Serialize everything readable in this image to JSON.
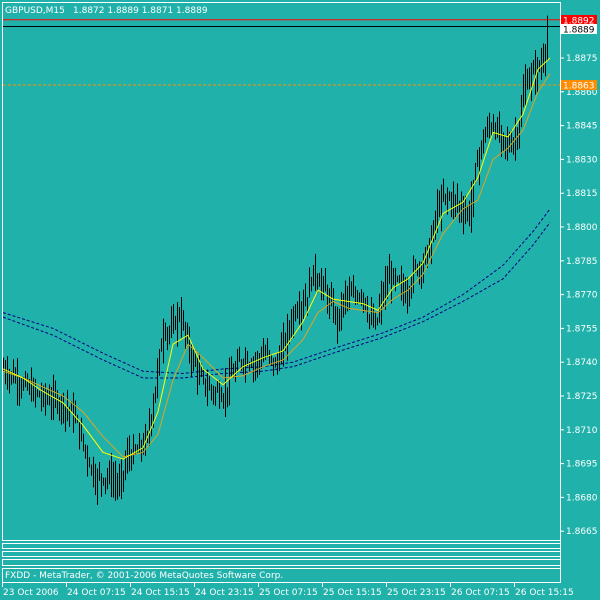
{
  "header": {
    "symbol_timeframe": "GBPUSD,M15",
    "ohlc": "1.8872 1.8889 1.8871 1.8889"
  },
  "footer": {
    "copyright": "FXDD - MetaTrader, © 2001-2006 MetaQuotes Software Corp."
  },
  "price_labels": {
    "red_line": "1.8892",
    "current": "1.8889",
    "orange_line": "1.8863"
  },
  "colors": {
    "background": "#20b2aa",
    "candles": "#000000",
    "ma_fast": "#ffff00",
    "ma_slow": "#daa520",
    "envelope": "#000080",
    "red_line": "#ff0000",
    "orange_line": "#ff8c00",
    "text": "#ffffff"
  },
  "chart_data": {
    "type": "candlestick",
    "title": "GBPUSD,M15",
    "y_ticks": [
      "1.8875",
      "1.8860",
      "1.8845",
      "1.8830",
      "1.8815",
      "1.8800",
      "1.8785",
      "1.8770",
      "1.8755",
      "1.8740",
      "1.8725",
      "1.8710",
      "1.8695",
      "1.8680",
      "1.8665"
    ],
    "y_tick_values": [
      1.8875,
      1.886,
      1.8845,
      1.883,
      1.8815,
      1.88,
      1.8785,
      1.877,
      1.8755,
      1.874,
      1.8725,
      1.871,
      1.8695,
      1.868,
      1.8665
    ],
    "ylim": [
      1.8655,
      1.8905
    ],
    "x_ticks": [
      "23 Oct 2006",
      "24 Oct 07:15",
      "24 Oct 15:15",
      "24 Oct 23:15",
      "25 Oct 07:15",
      "25 Oct 15:15",
      "25 Oct 23:15",
      "26 Oct 07:15",
      "26 Oct 15:15"
    ],
    "horizontal_lines": [
      {
        "label": "1.8892",
        "value": 1.8892,
        "color": "red"
      },
      {
        "label": "1.8889",
        "value": 1.8889,
        "color": "black"
      },
      {
        "label": "1.8863",
        "value": 1.8863,
        "color": "orange"
      }
    ],
    "close_path": [
      [
        0,
        1.8737
      ],
      [
        12,
        1.8733
      ],
      [
        25,
        1.8728
      ],
      [
        40,
        1.8724
      ],
      [
        55,
        1.8723
      ],
      [
        70,
        1.8717
      ],
      [
        80,
        1.8703
      ],
      [
        92,
        1.8688
      ],
      [
        104,
        1.869
      ],
      [
        116,
        1.8685
      ],
      [
        124,
        1.8698
      ],
      [
        134,
        1.87
      ],
      [
        144,
        1.8706
      ],
      [
        152,
        1.873
      ],
      [
        160,
        1.8755
      ],
      [
        168,
        1.8754
      ],
      [
        176,
        1.8762
      ],
      [
        184,
        1.8748
      ],
      [
        192,
        1.8738
      ],
      [
        200,
        1.873
      ],
      [
        210,
        1.8727
      ],
      [
        220,
        1.8726
      ],
      [
        230,
        1.8735
      ],
      [
        240,
        1.8742
      ],
      [
        252,
        1.874
      ],
      [
        262,
        1.8744
      ],
      [
        272,
        1.8738
      ],
      [
        282,
        1.875
      ],
      [
        292,
        1.8764
      ],
      [
        302,
        1.8768
      ],
      [
        310,
        1.878
      ],
      [
        318,
        1.8775
      ],
      [
        326,
        1.8766
      ],
      [
        334,
        1.8758
      ],
      [
        342,
        1.877
      ],
      [
        350,
        1.8768
      ],
      [
        358,
        1.8772
      ],
      [
        366,
        1.876
      ],
      [
        372,
        1.8755
      ],
      [
        378,
        1.8768
      ],
      [
        386,
        1.8778
      ],
      [
        394,
        1.8775
      ],
      [
        402,
        1.877
      ],
      [
        410,
        1.878
      ],
      [
        418,
        1.8784
      ],
      [
        426,
        1.879
      ],
      [
        434,
        1.8808
      ],
      [
        442,
        1.8813
      ],
      [
        450,
        1.8812
      ],
      [
        458,
        1.8808
      ],
      [
        466,
        1.8806
      ],
      [
        474,
        1.883
      ],
      [
        482,
        1.8842
      ],
      [
        490,
        1.8846
      ],
      [
        498,
        1.8838
      ],
      [
        506,
        1.8836
      ],
      [
        514,
        1.8842
      ],
      [
        522,
        1.8864
      ],
      [
        530,
        1.8868
      ],
      [
        538,
        1.8872
      ],
      [
        545,
        1.8889
      ]
    ],
    "ma_fast_path": [
      [
        0,
        1.8737
      ],
      [
        20,
        1.8733
      ],
      [
        40,
        1.8727
      ],
      [
        60,
        1.8722
      ],
      [
        80,
        1.8712
      ],
      [
        100,
        1.87
      ],
      [
        120,
        1.8697
      ],
      [
        140,
        1.8702
      ],
      [
        155,
        1.8718
      ],
      [
        170,
        1.8748
      ],
      [
        185,
        1.8752
      ],
      [
        200,
        1.8737
      ],
      [
        220,
        1.873
      ],
      [
        240,
        1.8738
      ],
      [
        260,
        1.8742
      ],
      [
        280,
        1.8745
      ],
      [
        300,
        1.8758
      ],
      [
        315,
        1.8772
      ],
      [
        330,
        1.8768
      ],
      [
        345,
        1.8767
      ],
      [
        360,
        1.8766
      ],
      [
        375,
        1.8763
      ],
      [
        390,
        1.8773
      ],
      [
        405,
        1.8777
      ],
      [
        420,
        1.8784
      ],
      [
        440,
        1.8806
      ],
      [
        460,
        1.8811
      ],
      [
        475,
        1.8822
      ],
      [
        490,
        1.8842
      ],
      [
        505,
        1.884
      ],
      [
        520,
        1.885
      ],
      [
        535,
        1.887
      ],
      [
        547,
        1.8875
      ]
    ],
    "ma_slow_path": [
      [
        0,
        1.8736
      ],
      [
        20,
        1.8733
      ],
      [
        40,
        1.8729
      ],
      [
        60,
        1.8725
      ],
      [
        80,
        1.8718
      ],
      [
        100,
        1.8707
      ],
      [
        120,
        1.8698
      ],
      [
        140,
        1.87
      ],
      [
        155,
        1.8708
      ],
      [
        170,
        1.8732
      ],
      [
        185,
        1.8748
      ],
      [
        200,
        1.8742
      ],
      [
        220,
        1.8733
      ],
      [
        240,
        1.8734
      ],
      [
        260,
        1.8738
      ],
      [
        280,
        1.8741
      ],
      [
        300,
        1.875
      ],
      [
        315,
        1.8762
      ],
      [
        330,
        1.8767
      ],
      [
        345,
        1.8764
      ],
      [
        360,
        1.8763
      ],
      [
        375,
        1.8762
      ],
      [
        390,
        1.8768
      ],
      [
        405,
        1.8772
      ],
      [
        420,
        1.8779
      ],
      [
        440,
        1.8797
      ],
      [
        460,
        1.8808
      ],
      [
        475,
        1.8812
      ],
      [
        490,
        1.883
      ],
      [
        505,
        1.8835
      ],
      [
        520,
        1.8843
      ],
      [
        535,
        1.886
      ],
      [
        547,
        1.8868
      ]
    ],
    "envelope_upper_path": [
      [
        0,
        1.8762
      ],
      [
        50,
        1.8755
      ],
      [
        100,
        1.8744
      ],
      [
        140,
        1.8736
      ],
      [
        180,
        1.8735
      ],
      [
        220,
        1.8737
      ],
      [
        260,
        1.8738
      ],
      [
        290,
        1.874
      ],
      [
        330,
        1.8746
      ],
      [
        380,
        1.8753
      ],
      [
        420,
        1.876
      ],
      [
        460,
        1.877
      ],
      [
        500,
        1.8783
      ],
      [
        530,
        1.8798
      ],
      [
        547,
        1.8808
      ]
    ],
    "envelope_lower_path": [
      [
        0,
        1.876
      ],
      [
        50,
        1.8752
      ],
      [
        100,
        1.8741
      ],
      [
        140,
        1.8733
      ],
      [
        180,
        1.8733
      ],
      [
        220,
        1.8735
      ],
      [
        260,
        1.8736
      ],
      [
        290,
        1.8738
      ],
      [
        330,
        1.8744
      ],
      [
        380,
        1.8751
      ],
      [
        420,
        1.8758
      ],
      [
        460,
        1.8767
      ],
      [
        500,
        1.8777
      ],
      [
        530,
        1.8792
      ],
      [
        547,
        1.8802
      ]
    ]
  }
}
